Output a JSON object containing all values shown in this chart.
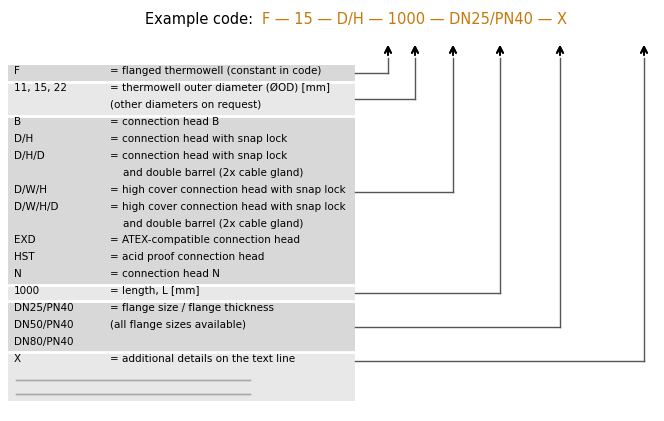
{
  "title_prefix": "Example code:  ",
  "title_code": "F — 15 — D/H — 1000 — DN25/PN40 — X",
  "code_color": "#c8780a",
  "prefix_color": "#000000",
  "bg_color": "#ffffff",
  "section_colors": [
    "#d8d8d8",
    "#e8e8e8",
    "#d8d8d8",
    "#e8e8e8",
    "#d8d8d8",
    "#e8e8e8"
  ],
  "separator_color": "#ffffff",
  "line_color": "#555555",
  "arrow_color": "#000000",
  "table_rows": [
    {
      "key": "F",
      "val1": "= flanged thermowell (constant in code)",
      "val2": null,
      "section": 0
    },
    {
      "key": "11, 15, 22",
      "val1": "= thermowell outer diameter (ØOD) [mm]",
      "val2": "(other diameters on request)",
      "section": 1
    },
    {
      "key": "B",
      "val1": "= connection head B",
      "val2": null,
      "section": 2
    },
    {
      "key": "D/H",
      "val1": "= connection head with snap lock",
      "val2": null,
      "section": 2
    },
    {
      "key": "D/H/D",
      "val1": "= connection head with snap lock",
      "val2": "    and double barrel (2x cable gland)",
      "section": 2
    },
    {
      "key": "D/W/H",
      "val1": "= high cover connection head with snap lock",
      "val2": null,
      "section": 2
    },
    {
      "key": "D/W/H/D",
      "val1": "= high cover connection head with snap lock",
      "val2": "    and double barrel (2x cable gland)",
      "section": 2
    },
    {
      "key": "EXD",
      "val1": "= ATEX-compatible connection head",
      "val2": null,
      "section": 2
    },
    {
      "key": "HST",
      "val1": "= acid proof connection head",
      "val2": null,
      "section": 2
    },
    {
      "key": "N",
      "val1": "= connection head N",
      "val2": null,
      "section": 2
    },
    {
      "key": "1000",
      "val1": "= length, L [mm]",
      "val2": null,
      "section": 3
    },
    {
      "key": "DN25/PN40",
      "val1": "= flange size / flange thickness",
      "val2": null,
      "section": 4
    },
    {
      "key": "DN50/PN40",
      "val1": "(all flange sizes available)",
      "val2": null,
      "section": 4
    },
    {
      "key": "DN80/PN40",
      "val1": "",
      "val2": null,
      "section": 4
    },
    {
      "key": "X",
      "val1": "= additional details on the text line",
      "val2": null,
      "section": 5
    }
  ],
  "font_size": 7.5,
  "title_font_size": 10.5,
  "fig_width": 6.64,
  "fig_height": 4.21,
  "dpi": 100
}
